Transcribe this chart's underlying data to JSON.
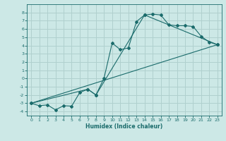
{
  "xlabel": "Humidex (Indice chaleur)",
  "ylabel": "",
  "bg_color": "#cce8e6",
  "grid_color": "#b0d0ce",
  "line_color": "#1a6b6b",
  "xlim": [
    -0.5,
    23.5
  ],
  "ylim": [
    -4.5,
    9.0
  ],
  "yticks": [
    -4,
    -3,
    -2,
    -1,
    0,
    1,
    2,
    3,
    4,
    5,
    6,
    7,
    8
  ],
  "xticks": [
    0,
    1,
    2,
    3,
    4,
    5,
    6,
    7,
    8,
    9,
    10,
    11,
    12,
    13,
    14,
    15,
    16,
    17,
    18,
    19,
    20,
    21,
    22,
    23
  ],
  "series1_x": [
    0,
    1,
    2,
    3,
    4,
    5,
    6,
    7,
    8,
    9,
    10,
    11,
    12,
    13,
    14,
    15,
    16,
    17,
    18,
    19,
    20,
    21,
    22,
    23
  ],
  "series1_y": [
    -3,
    -3.3,
    -3.2,
    -3.8,
    -3.3,
    -3.35,
    -1.7,
    -1.3,
    -2.0,
    0.05,
    4.3,
    3.5,
    3.7,
    6.9,
    7.7,
    7.8,
    7.7,
    6.5,
    6.4,
    6.4,
    6.3,
    5.1,
    4.4,
    4.1
  ],
  "series2_x": [
    0,
    7,
    8,
    14,
    23
  ],
  "series2_y": [
    -3,
    -1.3,
    -2.0,
    7.7,
    4.1
  ],
  "series3_x": [
    0,
    23
  ],
  "series3_y": [
    -3,
    4.1
  ]
}
